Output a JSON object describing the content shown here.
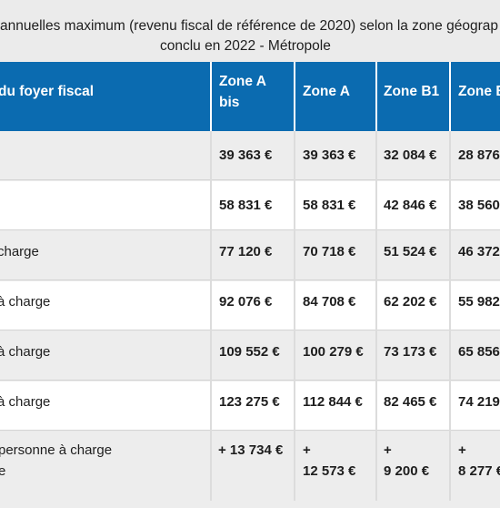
{
  "caption": {
    "line1": "annuelles maximum (revenu fiscal de référence de 2020) selon la zone géograp",
    "line2": "conclu en 2022 - Métropole"
  },
  "header": {
    "col0": "du foyer fiscal",
    "col1_line1": "Zone A",
    "col1_line2": "bis",
    "col2": "Zone A",
    "col3": "Zone B1",
    "col4": "Zone B"
  },
  "rows": [
    {
      "label": "",
      "v1": "39 363 €",
      "v2": "39 363 €",
      "v3": "32 084 €",
      "v4": "28 876"
    },
    {
      "label": "",
      "v1": "58 831 €",
      "v2": "58 831 €",
      "v3": "42 846 €",
      "v4": "38 560"
    },
    {
      "label": "charge",
      "v1": "77 120 €",
      "v2": "70 718 €",
      "v3": "51 524 €",
      "v4": "46 372"
    },
    {
      "label": "à charge",
      "v1": "92 076 €",
      "v2": "84 708 €",
      "v3": "62 202 €",
      "v4": "55 982"
    },
    {
      "label": "à charge",
      "v1": "109 552 €",
      "v2": "100 279 €",
      "v3": "73 173 €",
      "v4": "65 856"
    },
    {
      "label": "à charge",
      "v1": "123 275 €",
      "v2": "112 844 €",
      "v3": "82 465 €",
      "v4": "74 219"
    }
  ],
  "last_row": {
    "label_line1": "personne à charge",
    "label_line2": "e",
    "v1": "+ 13 734 €",
    "v2_line1": "+",
    "v2_line2": "12 573 €",
    "v3_line1": "+",
    "v3_line2": "9 200 €",
    "v4_line1": "+",
    "v4_line2": "8 277 €"
  }
}
